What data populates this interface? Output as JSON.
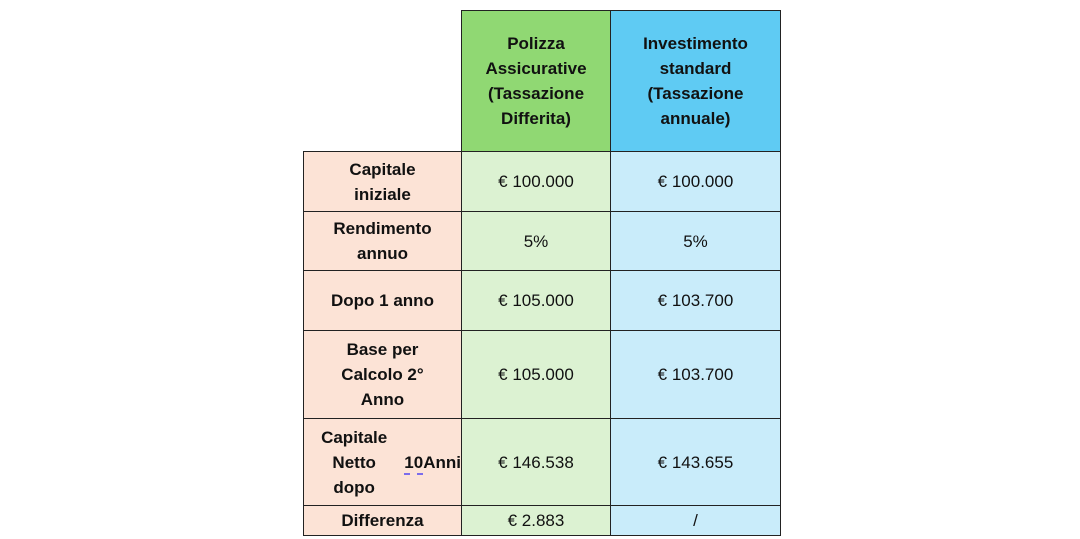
{
  "columns": [
    "Polizza\nAssicurative\n(Tassazione\nDifferita)",
    "Investimento\nstandard\n(Tassazione\nannuale)"
  ],
  "rows": [
    {
      "label": "Capitale\niniziale",
      "polizza": "€ 100.000",
      "standard": "€ 100.000"
    },
    {
      "label": "Rendimento\nannuo",
      "polizza": "5%",
      "standard": "5%"
    },
    {
      "label": "Dopo 1 anno",
      "polizza": "€ 105.000",
      "standard": "€ 103.700"
    },
    {
      "label": "Base per\nCalcolo 2°\nAnno",
      "polizza": "€ 105.000",
      "standard": "€ 103.700"
    },
    {
      "label_part1": "Capitale Netto\ndopo ",
      "label_part2": "10",
      "label_part3": " Anni",
      "polizza": "€ 146.538",
      "standard": "€ 143.655"
    },
    {
      "label": "Differenza",
      "polizza": "€ 2.883",
      "standard": "/"
    }
  ],
  "colors": {
    "header_polizza": "#90d873",
    "header_standard": "#5fcbf3",
    "label_cells": "#fce3d6",
    "polizza_cells": "#dcf2d2",
    "standard_cells": "#c9ecfa"
  }
}
